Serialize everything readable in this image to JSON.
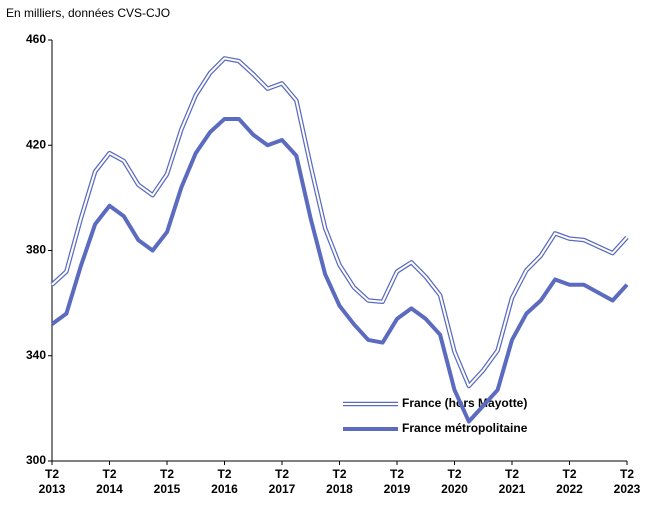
{
  "chart_data": {
    "type": "line",
    "subtitle": "En milliers, données CVS-CJO",
    "categories": [
      "T2 2013",
      null,
      null,
      null,
      "T2 2014",
      null,
      null,
      null,
      "T2 2015",
      null,
      null,
      null,
      "T2 2016",
      null,
      null,
      null,
      "T2 2017",
      null,
      null,
      null,
      "T2 2018",
      null,
      null,
      null,
      "T2 2019",
      null,
      null,
      null,
      "T2 2020",
      null,
      null,
      null,
      "T2 2021",
      null,
      null,
      null,
      "T2 2022",
      null,
      null,
      null,
      "T2 2023"
    ],
    "series": [
      {
        "name": "France (hors Mayotte)",
        "color": "#5b6bbf",
        "style": "double",
        "values": [
          367,
          372,
          392,
          410,
          417,
          414,
          405,
          401,
          409,
          426,
          439,
          447.5,
          453,
          452,
          447,
          441.5,
          443.5,
          437,
          412,
          388.5,
          374.5,
          366,
          361,
          360.5,
          372,
          375.5,
          370,
          363,
          341.5,
          328.5,
          334.5,
          342,
          362,
          372.5,
          378,
          386.5,
          384.5,
          384,
          381.5,
          379,
          385
        ]
      },
      {
        "name": "France métropolitaine",
        "color": "#5b6bbf",
        "style": "thick",
        "values": [
          352,
          356,
          374,
          390,
          397,
          393,
          384,
          380,
          387,
          404,
          417,
          425,
          430,
          430,
          424,
          420,
          422,
          416,
          392,
          371,
          359,
          352,
          346,
          345,
          354,
          358,
          354,
          348,
          327,
          315,
          321,
          327,
          346,
          356,
          361,
          369,
          367,
          367,
          364,
          361,
          367
        ]
      }
    ],
    "ylim": [
      300,
      460
    ],
    "yticks": [
      300,
      340,
      380,
      420,
      460
    ],
    "grid": false
  }
}
